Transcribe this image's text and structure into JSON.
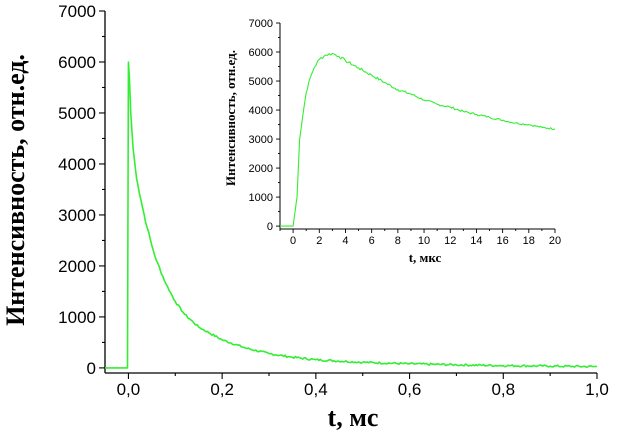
{
  "colors": {
    "series": "#33ee33",
    "axis": "#000000",
    "background": "#ffffff"
  },
  "chart_data": [
    {
      "type": "line",
      "xlabel": "t, мс",
      "ylabel": "Интенсивность, отн.ед.",
      "xlim": [
        -0.05,
        1.0
      ],
      "ylim": [
        -100,
        7000
      ],
      "xticks": [
        "0,0",
        "0,2",
        "0,4",
        "0,6",
        "0,8",
        "1,0"
      ],
      "yticks": [
        "0",
        "1000",
        "2000",
        "3000",
        "4000",
        "5000",
        "6000",
        "7000"
      ],
      "grid": false,
      "series": [
        {
          "x": [
            -0.05,
            -0.005,
            -0.002,
            0.0,
            0.002,
            0.005,
            0.01,
            0.015,
            0.02,
            0.03,
            0.04,
            0.05,
            0.06,
            0.08,
            0.1,
            0.12,
            0.15,
            0.2,
            0.25,
            0.3,
            0.35,
            0.4,
            0.5,
            0.6,
            0.7,
            0.8,
            0.9,
            1.0
          ],
          "y": [
            0,
            0,
            0,
            6000,
            5700,
            5000,
            4300,
            3900,
            3600,
            3150,
            2750,
            2400,
            2100,
            1650,
            1300,
            1050,
            800,
            550,
            390,
            280,
            210,
            160,
            110,
            80,
            60,
            45,
            35,
            25
          ]
        }
      ]
    },
    {
      "type": "line",
      "xlabel": "t, мкс",
      "ylabel": "Интенсивность, отн.ед.",
      "xlim": [
        -1,
        20
      ],
      "ylim": [
        -100,
        7000
      ],
      "xticks": [
        "0",
        "2",
        "4",
        "6",
        "8",
        "10",
        "12",
        "14",
        "16",
        "18",
        "20"
      ],
      "yticks": [
        "0",
        "1000",
        "2000",
        "3000",
        "4000",
        "5000",
        "6000",
        "7000"
      ],
      "grid": false,
      "series": [
        {
          "x": [
            -1,
            0,
            0.3,
            0.5,
            0.8,
            1.0,
            1.3,
            1.6,
            2.0,
            2.5,
            3.0,
            3.5,
            4.0,
            5.0,
            6.0,
            7.0,
            8.0,
            9.0,
            10.0,
            11.0,
            12.0,
            13.0,
            14.0,
            15.0,
            16.0,
            17.0,
            18.0,
            19.0,
            20.0
          ],
          "y": [
            0,
            0,
            1000,
            3000,
            4000,
            4600,
            5100,
            5450,
            5750,
            5900,
            5950,
            5850,
            5700,
            5450,
            5200,
            4950,
            4700,
            4550,
            4350,
            4200,
            4100,
            3950,
            3850,
            3750,
            3650,
            3550,
            3500,
            3400,
            3350
          ]
        }
      ]
    }
  ]
}
